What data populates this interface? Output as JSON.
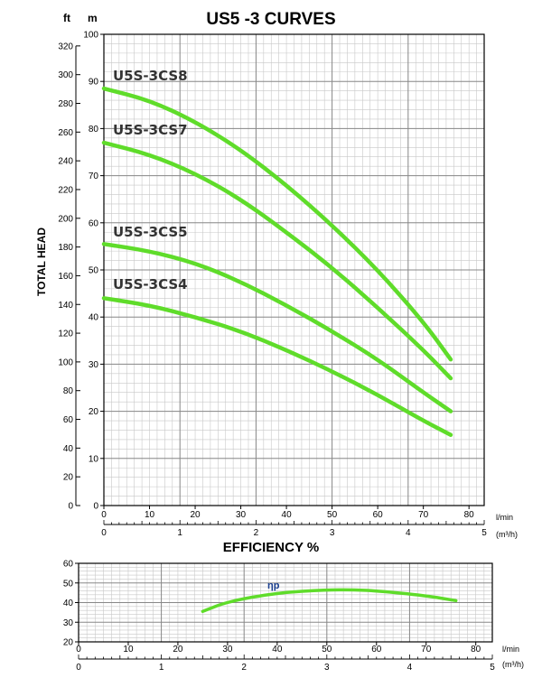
{
  "chart_data": [
    {
      "type": "line",
      "title": "US5 -3 CURVES",
      "ylabel": "TOTAL HEAD",
      "y_unit_m": "m",
      "y_unit_ft": "ft",
      "x_unit_lmin": "l/min",
      "x_unit_m3h": "(m³/h)",
      "xlim": [
        0,
        83.33
      ],
      "ylim": [
        0,
        100
      ],
      "grid": true,
      "x_ticks_lmin": [
        "0",
        "10",
        "20",
        "30",
        "40",
        "50",
        "60",
        "70",
        "80"
      ],
      "x_ticks_m3h": [
        "0",
        "1",
        "2",
        "3",
        "4",
        "5"
      ],
      "y_ticks_m": [
        "0",
        "10",
        "20",
        "30",
        "40",
        "50",
        "60",
        "70",
        "80",
        "90",
        "100"
      ],
      "y_ticks_ft": [
        "0",
        "20",
        "40",
        "60",
        "80",
        "100",
        "120",
        "140",
        "160",
        "180",
        "200",
        "220",
        "240",
        "260",
        "280",
        "300",
        "320"
      ],
      "series_color": "#5fdc2a",
      "series": [
        {
          "name": "U5S-3CS8",
          "x": [
            0,
            10,
            20,
            30,
            40,
            50,
            60,
            70,
            76
          ],
          "y": [
            88.5,
            86,
            81.5,
            75.5,
            68,
            59.5,
            50,
            39,
            31
          ]
        },
        {
          "name": "U5S-3CS7",
          "x": [
            0,
            10,
            20,
            30,
            40,
            50,
            60,
            70,
            76
          ],
          "y": [
            77,
            74.5,
            70.5,
            65,
            58,
            50.5,
            42,
            33,
            27
          ]
        },
        {
          "name": "U5S-3CS5",
          "x": [
            0,
            10,
            20,
            30,
            40,
            50,
            60,
            70,
            76
          ],
          "y": [
            55.5,
            54,
            51.5,
            47.5,
            42.5,
            37,
            31,
            24,
            20
          ]
        },
        {
          "name": "U5S-3CS4",
          "x": [
            0,
            10,
            20,
            30,
            40,
            50,
            60,
            70,
            76
          ],
          "y": [
            44,
            42.5,
            40,
            37,
            33,
            28.5,
            23.5,
            18,
            15
          ]
        }
      ]
    },
    {
      "type": "line",
      "title": "EFFICIENCY %",
      "xlim": [
        0,
        83.33
      ],
      "ylim": [
        20,
        60
      ],
      "grid": true,
      "x_unit_lmin": "l/min",
      "x_unit_m3h": "(m³/h)",
      "x_ticks_lmin": [
        "0",
        "10",
        "20",
        "30",
        "40",
        "50",
        "60",
        "70",
        "80"
      ],
      "x_ticks_m3h": [
        "0",
        "1",
        "2",
        "3",
        "4",
        "5"
      ],
      "y_ticks": [
        "20",
        "30",
        "40",
        "50",
        "60"
      ],
      "series_color": "#5fdc2a",
      "series": [
        {
          "name": "ηp",
          "x": [
            25,
            30,
            40,
            50,
            55,
            60,
            70,
            76
          ],
          "y": [
            35.5,
            40.5,
            45,
            46.5,
            46.5,
            46,
            43.5,
            41
          ]
        }
      ]
    }
  ]
}
